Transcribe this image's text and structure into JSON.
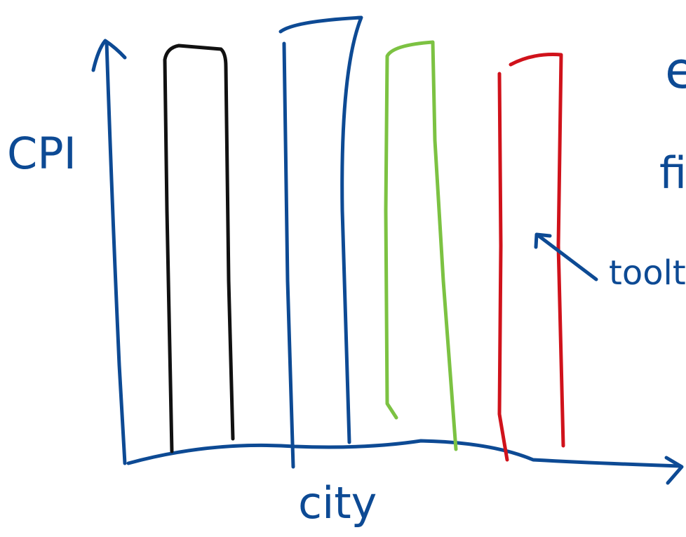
{
  "axes": {
    "y_label": "CPI",
    "x_label": "city"
  },
  "notes": [
    "e",
    "fi"
  ],
  "annotation": {
    "label": "toolti"
  }
}
